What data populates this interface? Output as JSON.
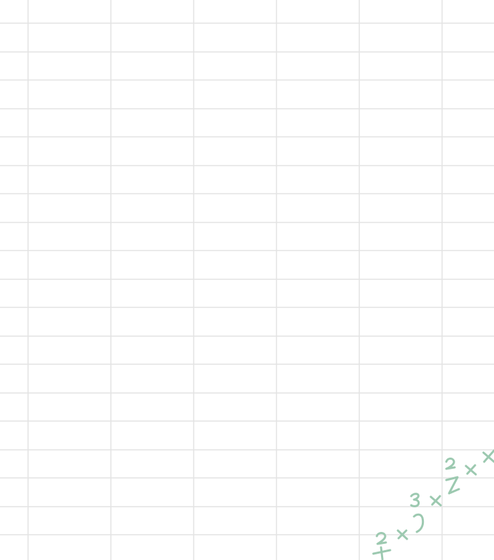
{
  "sheet": {
    "grid_color": "#e3e3e3",
    "ink_color": "#9cc9b0"
  },
  "ink": {
    "visible_text": "+²×y³×z²×x",
    "strokes": [
      "plus-sign",
      "exponent-2",
      "times-sign",
      "letter-y",
      "exponent-3",
      "times-sign",
      "letter-z",
      "exponent-2",
      "times-sign",
      "letter-x-partial"
    ]
  }
}
